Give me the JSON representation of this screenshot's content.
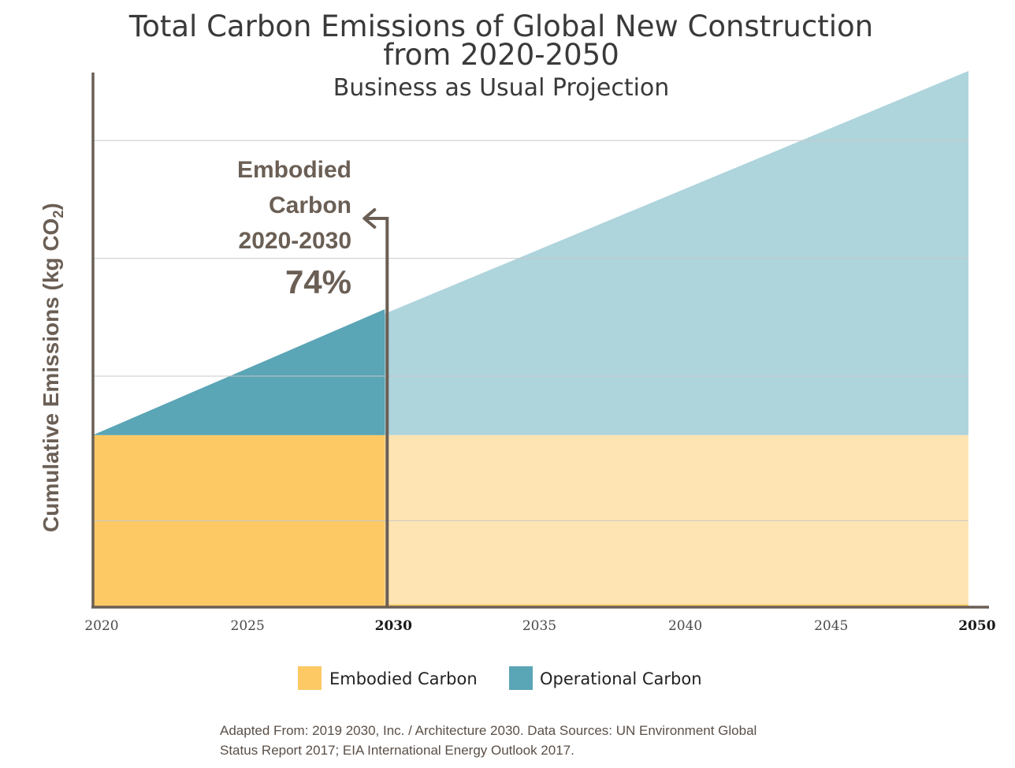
{
  "chart_data": {
    "type": "area",
    "title_line1": "Total Carbon Emissions of Global New Construction",
    "title_line2": "from 2020-2050",
    "subtitle": "Business as Usual Projection",
    "ylabel_main": "Cumulative Emissions (kg CO",
    "ylabel_sub": "2",
    "ylabel_end": ")",
    "x_ticks": [
      {
        "label": "2020",
        "value": 2020,
        "bold": false
      },
      {
        "label": "2025",
        "value": 2025,
        "bold": false
      },
      {
        "label": "2030",
        "value": 2030,
        "bold": true
      },
      {
        "label": "2035",
        "value": 2035,
        "bold": false
      },
      {
        "label": "2040",
        "value": 2040,
        "bold": false
      },
      {
        "label": "2045",
        "value": 2045,
        "bold": false
      },
      {
        "label": "2050",
        "value": 2050,
        "bold": true
      }
    ],
    "xlim": [
      2020,
      2050.3
    ],
    "ylim": [
      0,
      100
    ],
    "grid": true,
    "gridlines": [
      16,
      43,
      65,
      87
    ],
    "embodied_level": 32,
    "series": [
      {
        "name": "Embodied Carbon",
        "x": [
          2020,
          2050
        ],
        "y": [
          32,
          32
        ],
        "color": "#fcc965",
        "faded_color": "#fde4b2"
      },
      {
        "name": "Operational Carbon",
        "x": [
          2020,
          2030,
          2050
        ],
        "y": [
          32,
          55.5,
          100
        ],
        "color": "#5aa5b6",
        "faded_color": "#aed4dc"
      }
    ],
    "highlight_end": 2030,
    "annotation": {
      "line1": "Embodied",
      "line2": "Carbon",
      "line3": "2020-2030",
      "value": "74%"
    },
    "legend": [
      {
        "label": "Embodied Carbon",
        "color": "#fcc965"
      },
      {
        "label": "Operational Carbon",
        "color": "#5aa5b6"
      }
    ],
    "source_line1": "Adapted From:  2019 2030, Inc. / Architecture 2030.  Data Sources: UN Environment Global",
    "source_line2": "Status Report 2017; EIA International Energy Outlook 2017."
  },
  "colors": {
    "axis": "#6b5f55",
    "grid": "#c8c8c8"
  }
}
